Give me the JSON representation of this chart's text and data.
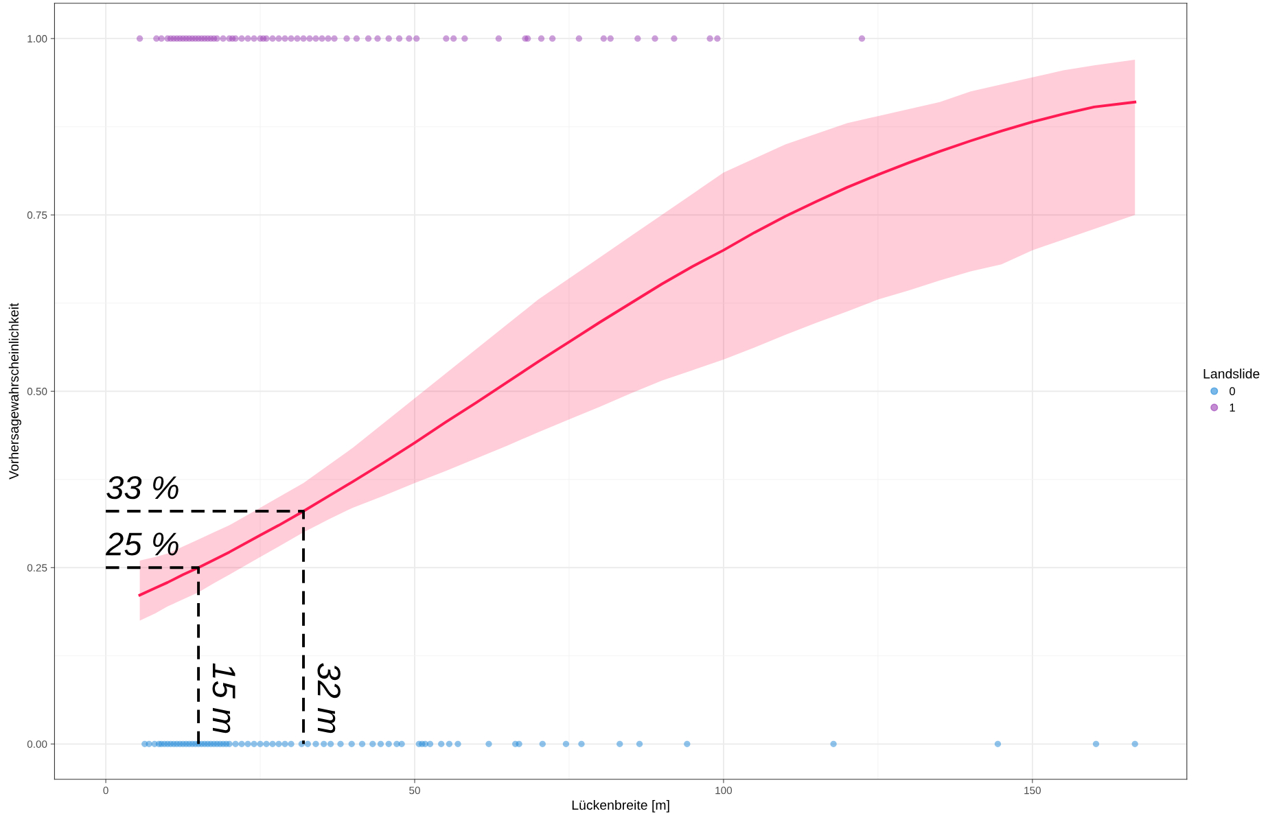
{
  "chart_data": {
    "type": "scatter",
    "xlabel": "Lückenbreite [m]",
    "ylabel": "Vorhersagewahrscheinlichkeit",
    "legend_title": "Landslide",
    "legend": "right",
    "grid": true,
    "marker": "circle",
    "xlim": [
      -8.3,
      175
    ],
    "xticks": [
      0,
      50,
      100,
      150,
      {
        "value": 25,
        "label": null
      },
      {
        "value": 75,
        "label": null
      },
      {
        "value": 125,
        "label": null
      }
    ],
    "ylim": [
      -0.05,
      1.05
    ],
    "yticks": [
      {
        "value": 0,
        "label": "0.00"
      },
      {
        "value": 0.25,
        "label": "0.25"
      },
      {
        "value": 0.5,
        "label": "0.50"
      },
      {
        "value": 0.75,
        "label": "0.75"
      },
      {
        "value": 1,
        "label": "1.00"
      },
      {
        "value": 0.125,
        "label": null
      },
      {
        "value": 0.375,
        "label": null
      },
      {
        "value": 0.625,
        "label": null
      },
      {
        "value": 0.875,
        "label": null
      }
    ],
    "series": [
      {
        "type": "line",
        "color": "#ff1a53",
        "line_style": "solid",
        "marker": "none",
        "x": [
          5.5,
          8,
          10,
          12.5,
          15,
          17.5,
          20,
          25,
          28,
          32,
          36,
          40,
          45,
          50,
          55,
          60,
          65,
          70,
          75,
          80,
          85,
          90,
          95,
          100,
          105,
          110,
          115,
          120,
          125,
          130,
          135,
          140,
          145,
          150,
          155,
          160,
          166.6
        ],
        "values": [
          0.211,
          0.221,
          0.229,
          0.24,
          0.25,
          0.261,
          0.272,
          0.296,
          0.31,
          0.33,
          0.351,
          0.372,
          0.399,
          0.427,
          0.456,
          0.484,
          0.513,
          0.542,
          0.57,
          0.598,
          0.625,
          0.652,
          0.677,
          0.7,
          0.725,
          0.748,
          0.769,
          0.789,
          0.807,
          0.824,
          0.84,
          0.855,
          0.869,
          0.882,
          0.893,
          0.903,
          0.91
        ],
        "lower": [
          0.175,
          0.185,
          0.195,
          0.205,
          0.215,
          0.228,
          0.24,
          0.265,
          0.28,
          0.3,
          0.318,
          0.335,
          0.352,
          0.37,
          0.387,
          0.405,
          0.423,
          0.442,
          0.46,
          0.478,
          0.497,
          0.515,
          0.53,
          0.545,
          0.562,
          0.58,
          0.597,
          0.613,
          0.63,
          0.643,
          0.657,
          0.67,
          0.68,
          0.7,
          0.715,
          0.73,
          0.75
        ],
        "upper": [
          0.26,
          0.265,
          0.27,
          0.28,
          0.29,
          0.3,
          0.31,
          0.335,
          0.35,
          0.37,
          0.395,
          0.42,
          0.455,
          0.49,
          0.525,
          0.56,
          0.595,
          0.63,
          0.66,
          0.69,
          0.72,
          0.75,
          0.78,
          0.81,
          0.83,
          0.85,
          0.865,
          0.88,
          0.89,
          0.9,
          0.91,
          0.925,
          0.935,
          0.945,
          0.955,
          0.962,
          0.97
        ]
      },
      {
        "name": "0",
        "color": "#1f88d8",
        "x": [
          6.3,
          7,
          7.9,
          8.6,
          9,
          9.5,
          10,
          10.5,
          11,
          11.5,
          12,
          12.5,
          13,
          13.5,
          14,
          14.5,
          15,
          15.5,
          16,
          16.5,
          17,
          17.5,
          18,
          18.5,
          19,
          19.5,
          20,
          21,
          22,
          23,
          24,
          25,
          26,
          27,
          28,
          29,
          30,
          31.7,
          32.7,
          34,
          35.3,
          36.4,
          38,
          39.8,
          41.5,
          43.2,
          44.5,
          45.8,
          47.1,
          47.9,
          50.7,
          51.2,
          51.7,
          52.5,
          54.3,
          55.6,
          57,
          62,
          66.3,
          66.9,
          70.7,
          74.5,
          77,
          83.2,
          86.4,
          94.1,
          117.8,
          144.4,
          160.3,
          166.6
        ],
        "values": [
          0,
          0,
          0,
          0,
          0,
          0,
          0,
          0,
          0,
          0,
          0,
          0,
          0,
          0,
          0,
          0,
          0,
          0,
          0,
          0,
          0,
          0,
          0,
          0,
          0,
          0,
          0,
          0,
          0,
          0,
          0,
          0,
          0,
          0,
          0,
          0,
          0,
          0,
          0,
          0,
          0,
          0,
          0,
          0,
          0,
          0,
          0,
          0,
          0,
          0,
          0,
          0,
          0,
          0,
          0,
          0,
          0,
          0,
          0,
          0,
          0,
          0,
          0,
          0,
          0,
          0,
          0,
          0,
          0,
          0
        ]
      },
      {
        "name": "1",
        "color": "#9b3fb5",
        "x": [
          5.5,
          8.2,
          9,
          10,
          10.5,
          11,
          11.5,
          12,
          12.5,
          13,
          13.5,
          14,
          14.5,
          15,
          15.5,
          16,
          16.5,
          17,
          17.5,
          18,
          19,
          20,
          20.5,
          21,
          22,
          23,
          24,
          25,
          25.5,
          26,
          27,
          28,
          29,
          30,
          31,
          32,
          33,
          34,
          35,
          36,
          37,
          39,
          40.6,
          42.5,
          44,
          45.8,
          47.5,
          49.1,
          50.3,
          55.1,
          56.3,
          58.1,
          63.6,
          67.9,
          68.3,
          70.5,
          72.3,
          76.6,
          80.6,
          81.7,
          86.1,
          88.9,
          92,
          97.8,
          99,
          122.4
        ],
        "values": [
          1,
          1,
          1,
          1,
          1,
          1,
          1,
          1,
          1,
          1,
          1,
          1,
          1,
          1,
          1,
          1,
          1,
          1,
          1,
          1,
          1,
          1,
          1,
          1,
          1,
          1,
          1,
          1,
          1,
          1,
          1,
          1,
          1,
          1,
          1,
          1,
          1,
          1,
          1,
          1,
          1,
          1,
          1,
          1,
          1,
          1,
          1,
          1,
          1,
          1,
          1,
          1,
          1,
          1,
          1,
          1,
          1,
          1,
          1,
          1,
          1,
          1,
          1,
          1,
          1,
          1
        ]
      },
      {
        "type": "line",
        "color": "#000000",
        "line_style": "dashed",
        "marker": "none",
        "x": [
          0,
          32,
          32
        ],
        "values": [
          0.33,
          0.33,
          0
        ]
      },
      {
        "type": "line",
        "color": "#000000",
        "line_style": "dashed",
        "marker": "none",
        "x": [
          0,
          15,
          15
        ],
        "values": [
          0.25,
          0.25,
          0
        ]
      }
    ],
    "annotations": [
      {
        "text": "33 %",
        "x": 0,
        "y": 0.33
      },
      {
        "text": "25 %",
        "x": 0,
        "y": 0.25
      },
      {
        "text": "15 m",
        "x": 15,
        "y": 0
      },
      {
        "text": "32 m",
        "x": 32,
        "y": 0
      }
    ]
  }
}
